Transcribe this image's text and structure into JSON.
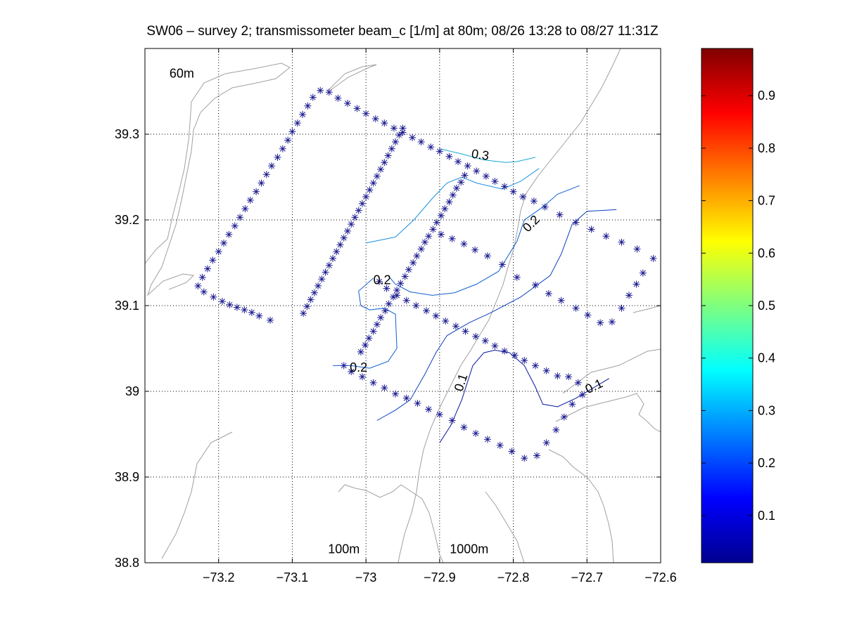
{
  "chart_data": {
    "type": "contour",
    "title": "SW06 – survey 2; transmissometer beam_c [1/m] at 80m; 08/26 13:28 to 08/27 11:31Z",
    "xlim": [
      -73.3,
      -72.6
    ],
    "ylim": [
      38.8,
      39.4
    ],
    "xticks": [
      -73.2,
      -73.1,
      -73.0,
      -72.9,
      -72.8,
      -72.7,
      -72.6
    ],
    "xtick_labels": [
      "−73.2",
      "−73.1",
      "−73",
      "−72.9",
      "−72.8",
      "−72.7",
      "−72.6"
    ],
    "yticks": [
      38.8,
      38.9,
      39.0,
      39.1,
      39.2,
      39.3
    ],
    "ytick_labels": [
      "38.8",
      "38.9",
      "39",
      "39.1",
      "39.2",
      "39.3"
    ],
    "grid": true,
    "bathymetry_labels": [
      {
        "text": "60m",
        "x": -73.25,
        "y": 39.37
      },
      {
        "text": "100m",
        "x": -73.03,
        "y": 38.815
      },
      {
        "text": "1000m",
        "x": -72.86,
        "y": 38.815
      }
    ],
    "contour_labels": [
      {
        "text": "0.3",
        "x": -72.845,
        "y": 39.275,
        "angle": 8
      },
      {
        "text": "0.2",
        "x": -72.775,
        "y": 39.195,
        "angle": -45
      },
      {
        "text": "0.2",
        "x": -72.978,
        "y": 39.129,
        "angle": 0
      },
      {
        "text": "0.2",
        "x": -73.01,
        "y": 39.027,
        "angle": 0
      },
      {
        "text": "0.1",
        "x": -72.87,
        "y": 39.01,
        "angle": -72
      },
      {
        "text": "0.1",
        "x": -72.69,
        "y": 39.005,
        "angle": -25
      }
    ],
    "contours": [
      {
        "level": 0.3,
        "color": "#16a9d4",
        "x": [
          -72.9,
          -72.87,
          -72.84,
          -72.81,
          -72.795,
          -72.77
        ],
        "y": [
          39.283,
          39.277,
          39.27,
          39.267,
          39.268,
          39.273
        ]
      },
      {
        "level": 0.25,
        "color": "#1c8fe0",
        "x": [
          -73.0,
          -72.96,
          -72.935,
          -72.91,
          -72.89,
          -72.87,
          -72.85,
          -72.815,
          -72.79,
          -72.765
        ],
        "y": [
          39.173,
          39.18,
          39.2,
          39.225,
          39.243,
          39.25,
          39.243,
          39.236,
          39.245,
          39.26
        ]
      },
      {
        "level": 0.2,
        "color": "#0f5fcf",
        "x": [
          -72.97,
          -72.96,
          -72.94,
          -72.91,
          -72.88,
          -72.85,
          -72.82,
          -72.795,
          -72.785,
          -72.76,
          -72.74,
          -72.71
        ],
        "y": [
          39.135,
          39.125,
          39.116,
          39.112,
          39.115,
          39.125,
          39.14,
          39.175,
          39.2,
          39.215,
          39.23,
          39.24
        ]
      },
      {
        "level": 0.2,
        "color": "#0f5fcf",
        "x": [
          -72.99,
          -73.01,
          -73.007,
          -72.995,
          -72.975,
          -72.96,
          -72.958,
          -72.97,
          -72.995,
          -73.02,
          -73.045
        ],
        "y": [
          39.132,
          39.117,
          39.1,
          39.095,
          39.097,
          39.09,
          39.05,
          39.035,
          39.027,
          39.03,
          39.03
        ]
      },
      {
        "level": 0.15,
        "color": "#0a3fbf",
        "x": [
          -72.985,
          -72.96,
          -72.94,
          -72.92,
          -72.905,
          -72.89,
          -72.86,
          -72.83,
          -72.79,
          -72.75,
          -72.735,
          -72.72,
          -72.7,
          -72.66
        ],
        "y": [
          38.966,
          38.978,
          38.99,
          39.02,
          39.045,
          39.065,
          39.08,
          39.092,
          39.11,
          39.135,
          39.16,
          39.195,
          39.21,
          39.212
        ]
      },
      {
        "level": 0.1,
        "color": "#06179e",
        "x": [
          -72.9,
          -72.885,
          -72.87,
          -72.855,
          -72.84,
          -72.825,
          -72.805,
          -72.785,
          -72.77,
          -72.76,
          -72.74,
          -72.715,
          -72.67
        ],
        "y": [
          38.94,
          38.96,
          38.99,
          39.03,
          39.045,
          39.048,
          39.045,
          39.03,
          39.005,
          38.985,
          38.982,
          38.992,
          39.015
        ]
      }
    ],
    "stations": [
      [
        -73.228,
        39.123
      ],
      [
        -73.22,
        39.116
      ],
      [
        -73.207,
        39.11
      ],
      [
        -73.195,
        39.105
      ],
      [
        -73.185,
        39.101
      ],
      [
        -73.175,
        39.098
      ],
      [
        -73.165,
        39.095
      ],
      [
        -73.155,
        39.092
      ],
      [
        -73.145,
        39.088
      ],
      [
        -73.13,
        39.083
      ],
      [
        -73.222,
        39.133
      ],
      [
        -73.215,
        39.143
      ],
      [
        -73.208,
        39.153
      ],
      [
        -73.2,
        39.163
      ],
      [
        -73.193,
        39.173
      ],
      [
        -73.186,
        39.183
      ],
      [
        -73.178,
        39.193
      ],
      [
        -73.171,
        39.203
      ],
      [
        -73.164,
        39.213
      ],
      [
        -73.157,
        39.223
      ],
      [
        -73.149,
        39.233
      ],
      [
        -73.142,
        39.243
      ],
      [
        -73.135,
        39.253
      ],
      [
        -73.128,
        39.263
      ],
      [
        -73.12,
        39.273
      ],
      [
        -73.113,
        39.283
      ],
      [
        -73.106,
        39.293
      ],
      [
        -73.1,
        39.303
      ],
      [
        -73.093,
        39.313
      ],
      [
        -73.086,
        39.323
      ],
      [
        -73.079,
        39.333
      ],
      [
        -73.072,
        39.343
      ],
      [
        -73.062,
        39.351
      ],
      [
        -73.05,
        39.349
      ],
      [
        -73.038,
        39.342
      ],
      [
        -73.025,
        39.336
      ],
      [
        -73.012,
        39.33
      ],
      [
        -73.0,
        39.324
      ],
      [
        -72.987,
        39.318
      ],
      [
        -72.975,
        39.313
      ],
      [
        -72.962,
        39.307
      ],
      [
        -72.95,
        39.302
      ],
      [
        -72.937,
        39.296
      ],
      [
        -72.925,
        39.291
      ],
      [
        -72.912,
        39.285
      ],
      [
        -72.9,
        39.28
      ],
      [
        -72.887,
        39.274
      ],
      [
        -72.875,
        39.268
      ],
      [
        -72.862,
        39.263
      ],
      [
        -72.85,
        39.257
      ],
      [
        -72.837,
        39.251
      ],
      [
        -72.825,
        39.245
      ],
      [
        -72.812,
        39.239
      ],
      [
        -72.8,
        39.233
      ],
      [
        -72.787,
        39.227
      ],
      [
        -72.772,
        39.222
      ],
      [
        -72.757,
        39.215
      ],
      [
        -72.737,
        39.206
      ],
      [
        -72.715,
        39.197
      ],
      [
        -72.694,
        39.189
      ],
      [
        -72.674,
        39.181
      ],
      [
        -72.653,
        39.174
      ],
      [
        -72.632,
        39.166
      ],
      [
        -72.61,
        39.155
      ],
      [
        -72.624,
        39.138
      ],
      [
        -72.633,
        39.125
      ],
      [
        -72.643,
        39.112
      ],
      [
        -72.653,
        39.097
      ],
      [
        -72.666,
        39.081
      ],
      [
        -72.682,
        39.08
      ],
      [
        -72.699,
        39.089
      ],
      [
        -72.715,
        39.097
      ],
      [
        -72.735,
        39.106
      ],
      [
        -72.752,
        39.114
      ],
      [
        -72.77,
        39.124
      ],
      [
        -72.795,
        39.133
      ],
      [
        -72.815,
        39.148
      ],
      [
        -72.835,
        39.158
      ],
      [
        -72.852,
        39.165
      ],
      [
        -72.867,
        39.172
      ],
      [
        -72.883,
        39.178
      ],
      [
        -72.898,
        39.183
      ],
      [
        -72.866,
        39.252
      ],
      [
        -72.871,
        39.244
      ],
      [
        -72.877,
        39.237
      ],
      [
        -72.882,
        39.229
      ],
      [
        -72.887,
        39.221
      ],
      [
        -72.893,
        39.213
      ],
      [
        -72.898,
        39.205
      ],
      [
        -72.904,
        39.197
      ],
      [
        -72.909,
        39.189
      ],
      [
        -72.915,
        39.181
      ],
      [
        -72.92,
        39.174
      ],
      [
        -72.925,
        39.166
      ],
      [
        -72.931,
        39.158
      ],
      [
        -72.936,
        39.15
      ],
      [
        -72.942,
        39.142
      ],
      [
        -72.947,
        39.134
      ],
      [
        -72.953,
        39.126
      ],
      [
        -72.958,
        39.118
      ],
      [
        -72.963,
        39.11
      ],
      [
        -72.969,
        39.102
      ],
      [
        -72.974,
        39.094
      ],
      [
        -72.98,
        39.086
      ],
      [
        -72.985,
        39.078
      ],
      [
        -72.99,
        39.07
      ],
      [
        -72.996,
        39.062
      ],
      [
        -73.001,
        39.054
      ],
      [
        -73.007,
        39.046
      ],
      [
        -72.95,
        39.307
      ],
      [
        -72.955,
        39.299
      ],
      [
        -72.96,
        39.291
      ],
      [
        -72.965,
        39.283
      ],
      [
        -72.97,
        39.275
      ],
      [
        -72.975,
        39.267
      ],
      [
        -72.98,
        39.259
      ],
      [
        -72.985,
        39.251
      ],
      [
        -72.99,
        39.243
      ],
      [
        -72.995,
        39.235
      ],
      [
        -73.0,
        39.227
      ],
      [
        -73.005,
        39.219
      ],
      [
        -73.01,
        39.211
      ],
      [
        -73.015,
        39.203
      ],
      [
        -73.02,
        39.195
      ],
      [
        -73.025,
        39.187
      ],
      [
        -73.03,
        39.179
      ],
      [
        -73.035,
        39.171
      ],
      [
        -73.04,
        39.163
      ],
      [
        -73.045,
        39.155
      ],
      [
        -73.05,
        39.147
      ],
      [
        -73.055,
        39.139
      ],
      [
        -73.06,
        39.131
      ],
      [
        -73.065,
        39.123
      ],
      [
        -73.07,
        39.115
      ],
      [
        -73.075,
        39.107
      ],
      [
        -73.08,
        39.099
      ],
      [
        -73.085,
        39.091
      ],
      [
        -72.982,
        39.128
      ],
      [
        -72.972,
        39.12
      ],
      [
        -72.958,
        39.112
      ],
      [
        -72.945,
        39.106
      ],
      [
        -72.932,
        39.1
      ],
      [
        -72.918,
        39.094
      ],
      [
        -72.905,
        39.088
      ],
      [
        -72.892,
        39.082
      ],
      [
        -72.878,
        39.076
      ],
      [
        -72.865,
        39.07
      ],
      [
        -72.851,
        39.064
      ],
      [
        -72.838,
        39.059
      ],
      [
        -72.825,
        39.053
      ],
      [
        -72.812,
        39.047
      ],
      [
        -72.798,
        39.042
      ],
      [
        -72.785,
        39.036
      ],
      [
        -72.77,
        39.03
      ],
      [
        -72.755,
        39.024
      ],
      [
        -72.74,
        39.018
      ],
      [
        -72.725,
        39.017
      ],
      [
        -72.712,
        39.01
      ],
      [
        -72.706,
        38.996
      ],
      [
        -72.72,
        38.985
      ],
      [
        -72.731,
        38.97
      ],
      [
        -72.742,
        38.955
      ],
      [
        -72.755,
        38.94
      ],
      [
        -72.768,
        38.925
      ],
      [
        -72.785,
        38.922
      ],
      [
        -72.802,
        38.93
      ],
      [
        -72.818,
        38.937
      ],
      [
        -72.835,
        38.944
      ],
      [
        -72.851,
        38.951
      ],
      [
        -72.867,
        38.958
      ],
      [
        -72.883,
        38.966
      ],
      [
        -72.9,
        38.973
      ],
      [
        -72.915,
        38.979
      ],
      [
        -72.93,
        38.986
      ],
      [
        -72.945,
        38.992
      ],
      [
        -72.96,
        38.997
      ],
      [
        -72.975,
        39.004
      ],
      [
        -72.99,
        39.01
      ],
      [
        -73.005,
        39.017
      ],
      [
        -73.02,
        39.023
      ],
      [
        -73.03,
        39.03
      ]
    ],
    "station_color": "#1b1b90",
    "bathymetry_color": "#a0a0a0",
    "colorbar": {
      "range": [
        0.01,
        0.99
      ],
      "ticks": [
        0.1,
        0.2,
        0.3,
        0.4,
        0.5,
        0.6,
        0.7,
        0.8,
        0.9
      ],
      "tick_labels": [
        "0.1",
        "0.2",
        "0.3",
        "0.4",
        "0.5",
        "0.6",
        "0.7",
        "0.8",
        "0.9"
      ],
      "colormap": "jet"
    }
  }
}
